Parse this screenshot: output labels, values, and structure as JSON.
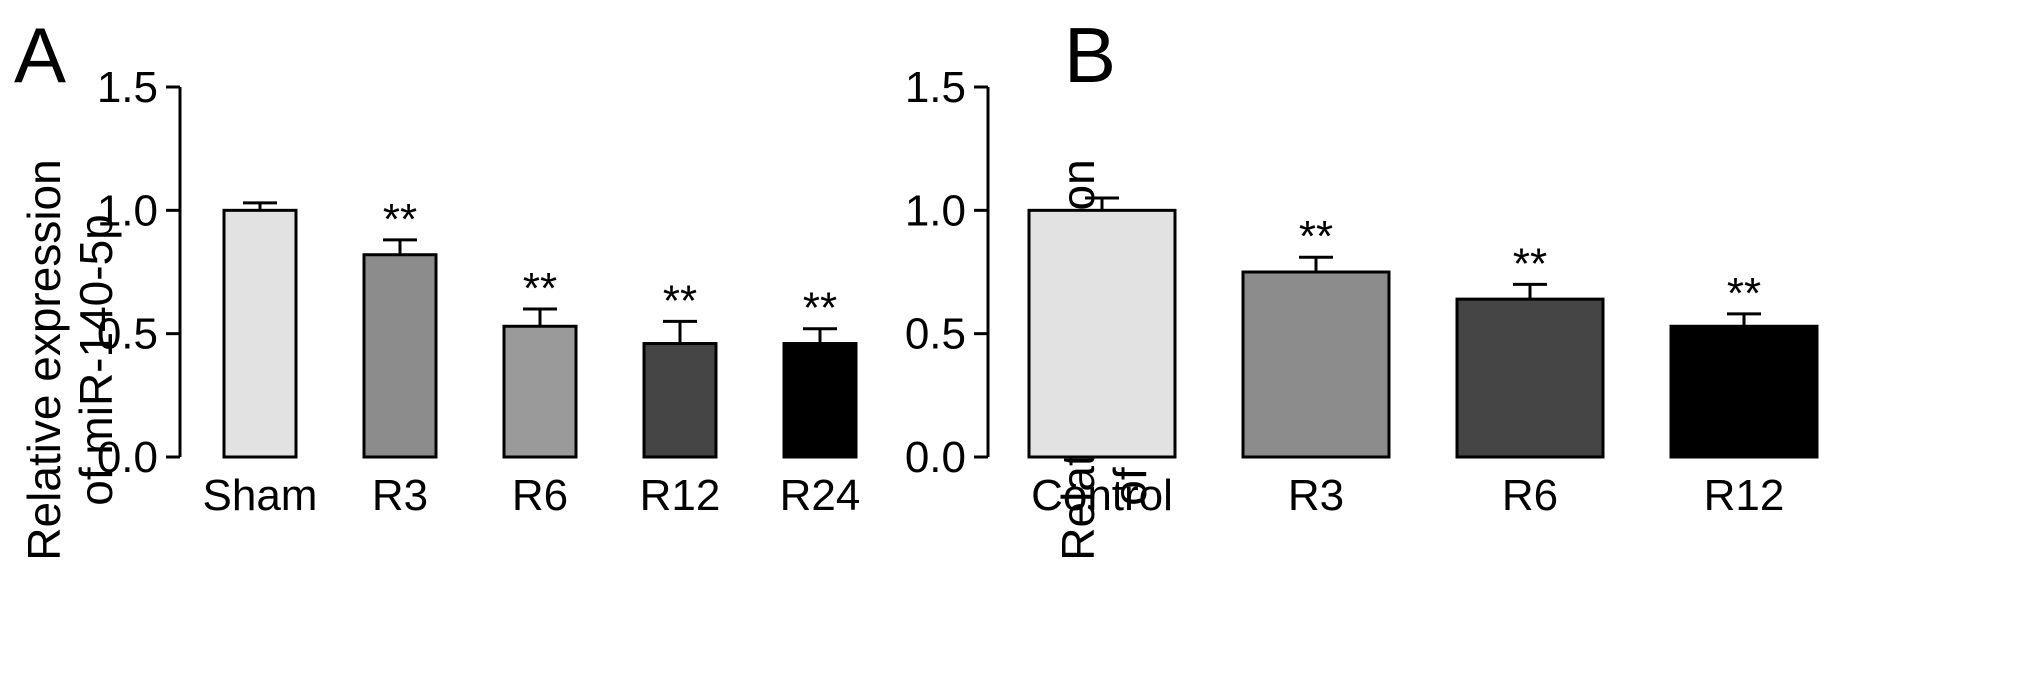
{
  "chart_data": [
    {
      "panel_label": "A",
      "type": "bar",
      "ylabel_lines": [
        "Relative expression",
        "of miR-140-5p"
      ],
      "ylim": [
        0,
        1.5
      ],
      "yticks": [
        "0.0",
        "0.5",
        "1.0",
        "1.5"
      ],
      "ytick_values": [
        0,
        0.5,
        1.0,
        1.5
      ],
      "categories": [
        "Sham",
        "R3",
        "R6",
        "R12",
        "R24"
      ],
      "values": [
        1.0,
        0.82,
        0.53,
        0.46,
        0.46
      ],
      "errors": [
        0.03,
        0.06,
        0.07,
        0.09,
        0.06
      ],
      "annotations": [
        "",
        "**",
        "**",
        "**",
        "**"
      ],
      "colors": [
        "#e2e2e2",
        "#8c8c8c",
        "#9a9a9a",
        "#454545",
        "#000000"
      ]
    },
    {
      "panel_label": "B",
      "type": "bar",
      "ylabel_lines": [
        "Relative expression",
        "of miR-140-5p"
      ],
      "ylim": [
        0,
        1.5
      ],
      "yticks": [
        "0.0",
        "0.5",
        "1.0",
        "1.5"
      ],
      "ytick_values": [
        0,
        0.5,
        1.0,
        1.5
      ],
      "categories": [
        "Control",
        "R3",
        "R6",
        "R12"
      ],
      "values": [
        1.0,
        0.75,
        0.64,
        0.53
      ],
      "errors": [
        0.05,
        0.06,
        0.06,
        0.05
      ],
      "annotations": [
        "",
        "**",
        "**",
        "**"
      ],
      "colors": [
        "#e2e2e2",
        "#8c8c8c",
        "#454545",
        "#000000"
      ]
    }
  ]
}
